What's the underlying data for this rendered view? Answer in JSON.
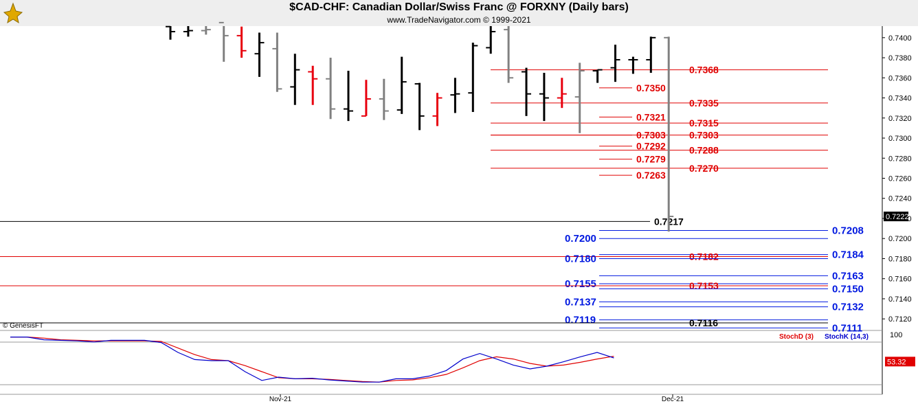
{
  "title": "$CAD-CHF:  Canadian Dollar/Swiss Franc @ FORXNY  (Daily bars)",
  "subtitle": "www.TradeNavigator.com © 1999-2021",
  "watermark": "© GenesisFT",
  "colors": {
    "up": "#000000",
    "down": "#e8000e",
    "neutral": "#808080",
    "red_level": "#e00000",
    "blue_level": "#0018e0",
    "stochD": "#e00000",
    "stochK": "#0000cc"
  },
  "chart_data": {
    "type": "ohlc",
    "price_axis": {
      "min": 0.7105,
      "max": 0.7413,
      "ticks": [
        "0.7400",
        "0.7380",
        "0.7360",
        "0.7340",
        "0.7320",
        "0.7300",
        "0.7280",
        "0.7260",
        "0.7240",
        "0.7220",
        "0.7200",
        "0.7180",
        "0.7160",
        "0.7140",
        "0.7120"
      ]
    },
    "last_price": "0.7222",
    "x_labels": [
      {
        "label": "Nov-21",
        "bar": 15
      },
      {
        "label": "Dec-21",
        "bar": 38
      }
    ],
    "bars": [
      {
        "o": 0.7411,
        "h": 0.7415,
        "l": 0.7398,
        "c": 0.7406,
        "col": "up"
      },
      {
        "o": 0.7406,
        "h": 0.7415,
        "l": 0.7401,
        "c": 0.7407,
        "col": "up"
      },
      {
        "o": 0.7407,
        "h": 0.7415,
        "l": 0.7403,
        "c": 0.7408,
        "col": "neutral"
      },
      {
        "o": 0.7415,
        "h": 0.7415,
        "l": 0.7376,
        "c": 0.7402,
        "col": "neutral"
      },
      {
        "o": 0.7402,
        "h": 0.7411,
        "l": 0.738,
        "c": 0.7387,
        "col": "down"
      },
      {
        "o": 0.7384,
        "h": 0.7405,
        "l": 0.7361,
        "c": 0.7395,
        "col": "up"
      },
      {
        "o": 0.7389,
        "h": 0.7405,
        "l": 0.7346,
        "c": 0.7349,
        "col": "neutral"
      },
      {
        "o": 0.7351,
        "h": 0.7384,
        "l": 0.7333,
        "c": 0.7368,
        "col": "up"
      },
      {
        "o": 0.7366,
        "h": 0.7372,
        "l": 0.7333,
        "c": 0.7359,
        "col": "down"
      },
      {
        "o": 0.7359,
        "h": 0.738,
        "l": 0.7319,
        "c": 0.7329,
        "col": "neutral"
      },
      {
        "o": 0.7329,
        "h": 0.7367,
        "l": 0.7317,
        "c": 0.7327,
        "col": "up"
      },
      {
        "o": 0.7322,
        "h": 0.7358,
        "l": 0.7322,
        "c": 0.7339,
        "col": "down"
      },
      {
        "o": 0.7339,
        "h": 0.7359,
        "l": 0.7318,
        "c": 0.7327,
        "col": "neutral"
      },
      {
        "o": 0.7328,
        "h": 0.7381,
        "l": 0.7324,
        "c": 0.7356,
        "col": "up"
      },
      {
        "o": 0.7354,
        "h": 0.7355,
        "l": 0.7308,
        "c": 0.7322,
        "col": "up"
      },
      {
        "o": 0.7322,
        "h": 0.7345,
        "l": 0.7312,
        "c": 0.734,
        "col": "down"
      },
      {
        "o": 0.7343,
        "h": 0.736,
        "l": 0.7325,
        "c": 0.7344,
        "col": "up"
      },
      {
        "o": 0.7345,
        "h": 0.7395,
        "l": 0.7326,
        "c": 0.7392,
        "col": "up"
      },
      {
        "o": 0.739,
        "h": 0.7412,
        "l": 0.7384,
        "c": 0.7406,
        "col": "up"
      },
      {
        "o": 0.7408,
        "h": 0.7412,
        "l": 0.7355,
        "c": 0.736,
        "col": "neutral"
      },
      {
        "o": 0.7366,
        "h": 0.737,
        "l": 0.7322,
        "c": 0.7344,
        "col": "up"
      },
      {
        "o": 0.7344,
        "h": 0.7365,
        "l": 0.7317,
        "c": 0.734,
        "col": "up"
      },
      {
        "o": 0.734,
        "h": 0.736,
        "l": 0.733,
        "c": 0.7344,
        "col": "down"
      },
      {
        "o": 0.7341,
        "h": 0.7375,
        "l": 0.7305,
        "c": 0.7367,
        "col": "neutral"
      },
      {
        "o": 0.7367,
        "h": 0.7368,
        "l": 0.7355,
        "c": 0.7368,
        "col": "up"
      },
      {
        "o": 0.737,
        "h": 0.7393,
        "l": 0.7356,
        "c": 0.7378,
        "col": "up"
      },
      {
        "o": 0.7378,
        "h": 0.7381,
        "l": 0.7364,
        "c": 0.7378,
        "col": "up"
      },
      {
        "o": 0.7378,
        "h": 0.7401,
        "l": 0.7365,
        "c": 0.74,
        "col": "up"
      },
      {
        "o": 0.74,
        "h": 0.7401,
        "l": 0.7207,
        "c": 0.7222,
        "col": "neutral"
      }
    ],
    "levels": [
      {
        "label": "0.7368",
        "color": "red",
        "line_from_bar": 19,
        "side": "right",
        "value": 0.7368
      },
      {
        "label": "0.7350",
        "color": "red",
        "line_from_bar": 27,
        "side": "mid",
        "value": 0.735
      },
      {
        "label": "0.7335",
        "color": "red",
        "line_from_bar": 19,
        "side": "right",
        "value": 0.7335
      },
      {
        "label": "0.7321",
        "color": "red",
        "line_from_bar": 27,
        "side": "mid",
        "value": 0.7321
      },
      {
        "label": "0.7315",
        "color": "red",
        "line_from_bar": 19,
        "side": "right",
        "value": 0.7315
      },
      {
        "label": "0.7303",
        "color": "red",
        "line_from_bar": 19,
        "side": "mid",
        "value": 0.7303
      },
      {
        "label": "0.7303",
        "color": "red",
        "line_from_bar": 19,
        "side": "right",
        "value": 0.7303
      },
      {
        "label": "0.7292",
        "color": "red",
        "line_from_bar": 27,
        "side": "mid",
        "value": 0.7292
      },
      {
        "label": "0.7288",
        "color": "red",
        "line_from_bar": 19,
        "side": "right",
        "value": 0.7288
      },
      {
        "label": "0.7279",
        "color": "red",
        "line_from_bar": 27,
        "side": "mid",
        "value": 0.7279
      },
      {
        "label": "0.7270",
        "color": "red",
        "line_from_bar": 19,
        "side": "right",
        "value": 0.727
      },
      {
        "label": "0.7263",
        "color": "red",
        "line_from_bar": 27,
        "side": "mid",
        "value": 0.7263
      },
      {
        "label": "0.7217",
        "color": "black",
        "line_from_bar": 0,
        "side": "mid",
        "value": 0.7217
      },
      {
        "label": "0.7208",
        "color": "blue",
        "line_from_bar": 27,
        "side": "right",
        "value": 0.7208
      },
      {
        "label": "0.7200",
        "color": "blue",
        "line_from_bar": 27,
        "side": "left",
        "value": 0.72
      },
      {
        "label": "0.7184",
        "color": "blue",
        "line_from_bar": 27,
        "side": "right",
        "value": 0.7184
      },
      {
        "label": "0.7182",
        "color": "red",
        "line_from_bar": 0,
        "side": "mid",
        "value": 0.7182
      },
      {
        "label": "0.7180",
        "color": "blue",
        "line_from_bar": 27,
        "side": "left",
        "value": 0.718
      },
      {
        "label": "0.7163",
        "color": "blue",
        "line_from_bar": 27,
        "side": "right",
        "value": 0.7163
      },
      {
        "label": "0.7155",
        "color": "blue",
        "line_from_bar": 27,
        "side": "left",
        "value": 0.7155
      },
      {
        "label": "0.7153",
        "color": "red",
        "line_from_bar": 0,
        "side": "mid",
        "value": 0.7153
      },
      {
        "label": "0.7150",
        "color": "blue",
        "line_from_bar": 27,
        "side": "right",
        "value": 0.715
      },
      {
        "label": "0.7137",
        "color": "blue",
        "line_from_bar": 27,
        "side": "left",
        "value": 0.7137
      },
      {
        "label": "0.7132",
        "color": "blue",
        "line_from_bar": 27,
        "side": "right",
        "value": 0.7132
      },
      {
        "label": "0.7119",
        "color": "blue",
        "line_from_bar": 27,
        "side": "left",
        "value": 0.7119
      },
      {
        "label": "0.7116",
        "color": "black",
        "line_from_bar": 0,
        "side": "mid",
        "value": 0.7116
      },
      {
        "label": "0.7111",
        "color": "blue",
        "line_from_bar": 27,
        "side": "right",
        "value": 0.7111
      }
    ],
    "stochastic": {
      "axis_label": "100",
      "legend": [
        "StochD (3)",
        "StochK (14,3)"
      ],
      "last_value": "53.32",
      "k": [
        98,
        98,
        93,
        92,
        91,
        89,
        92,
        92,
        92,
        88,
        70,
        57,
        55,
        55,
        35,
        19,
        25,
        22,
        23,
        20,
        18,
        16,
        16,
        22,
        22,
        27,
        37,
        58,
        68,
        58,
        47,
        40,
        45,
        53,
        62,
        70,
        60
      ],
      "d": [
        98,
        98,
        96,
        93,
        92,
        91,
        91,
        91,
        91,
        90,
        78,
        66,
        57,
        55,
        46,
        35,
        24,
        22,
        22,
        21,
        19,
        17,
        16,
        19,
        20,
        24,
        30,
        42,
        55,
        62,
        58,
        50,
        45,
        47,
        52,
        58,
        63
      ]
    }
  }
}
